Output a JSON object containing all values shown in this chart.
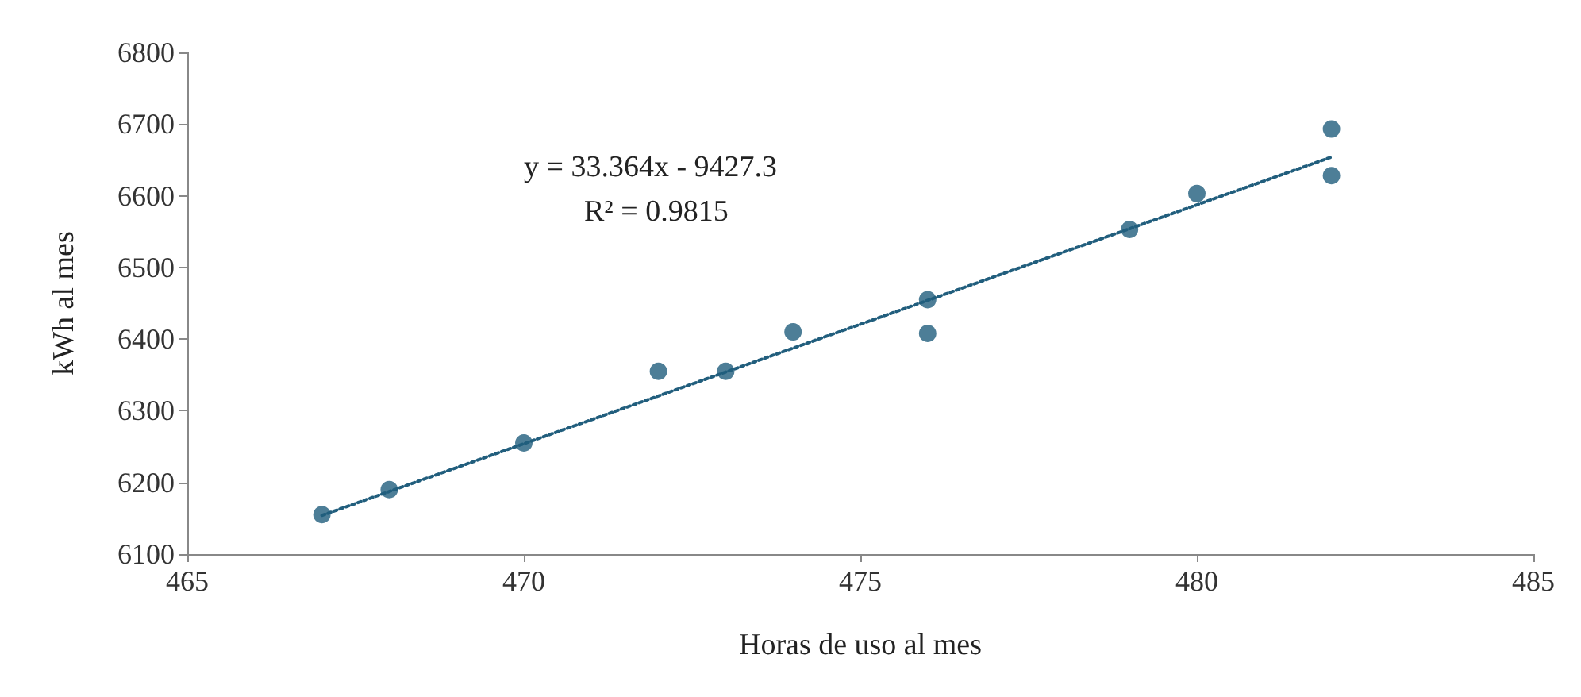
{
  "chart_data": {
    "type": "scatter",
    "xlabel": "Horas de uso al mes",
    "ylabel": "kWh al mes",
    "xlim": [
      465,
      485
    ],
    "xticks": [
      465,
      470,
      475,
      480,
      485
    ],
    "ylim": [
      6100,
      6800
    ],
    "yticks": [
      6100,
      6200,
      6300,
      6400,
      6500,
      6600,
      6700,
      6800
    ],
    "grid": false,
    "marker": "circle",
    "series": [
      {
        "color": "#215e7d",
        "x": [
          467,
          468,
          470,
          472,
          473,
          474,
          476,
          476,
          479,
          480,
          482,
          482
        ],
        "values": [
          6155,
          6190,
          6255,
          6355,
          6355,
          6410,
          6455,
          6408,
          6553,
          6603,
          6693,
          6628
        ]
      },
      {
        "type": "line",
        "color": "#215e7d",
        "line_style": "dotted",
        "marker": "none",
        "x": [
          467,
          482
        ],
        "values": [
          6154,
          6654
        ]
      }
    ],
    "annotations": [
      "y = 33.364x - 9427.3",
      "R² = 0.9815"
    ]
  }
}
